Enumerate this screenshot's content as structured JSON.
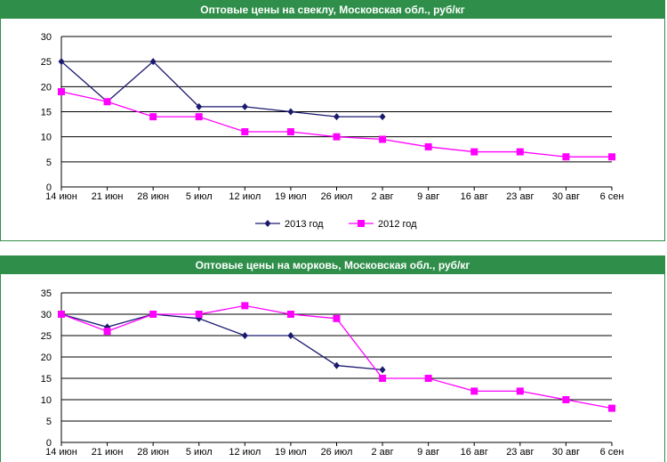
{
  "chart_data": [
    {
      "type": "line",
      "title": "Оптовые цены на свеклу, Московская обл., руб/кг",
      "categories": [
        "14 июн",
        "21 июн",
        "28 июн",
        "5 июл",
        "12 июл",
        "19 июл",
        "26 июл",
        "2 авг",
        "9 авг",
        "16 авг",
        "23 авг",
        "30 авг",
        "6 сен"
      ],
      "ylim": [
        0,
        30
      ],
      "yticks": [
        0,
        5,
        10,
        15,
        20,
        25,
        30
      ],
      "grid": true,
      "legend": "bottom",
      "series": [
        {
          "name": "2013 год",
          "color": "#1a1a6e",
          "marker": "diamond",
          "values": [
            25,
            17,
            25,
            16,
            16,
            15,
            14,
            14,
            null,
            null,
            null,
            null,
            null
          ]
        },
        {
          "name": "2012 год",
          "color": "#ff00ff",
          "marker": "square",
          "values": [
            19,
            17,
            14,
            14,
            11,
            11,
            10,
            9.5,
            8,
            7,
            7,
            6,
            6
          ]
        }
      ]
    },
    {
      "type": "line",
      "title": "Оптовые цены на морковь, Московская обл., руб/кг",
      "categories": [
        "14 июн",
        "21 июн",
        "28 июн",
        "5 июл",
        "12 июл",
        "19 июл",
        "26 июл",
        "2 авг",
        "9 авг",
        "16 авг",
        "23 авг",
        "30 авг",
        "6 сен"
      ],
      "ylim": [
        0,
        35
      ],
      "yticks": [
        0,
        5,
        10,
        15,
        20,
        25,
        30,
        35
      ],
      "grid": true,
      "series": [
        {
          "name": "2013 год",
          "color": "#1a1a6e",
          "marker": "diamond",
          "values": [
            30,
            27,
            30,
            29,
            25,
            25,
            18,
            17,
            null,
            null,
            null,
            null,
            null
          ]
        },
        {
          "name": "2012 год",
          "color": "#ff00ff",
          "marker": "square",
          "values": [
            30,
            26,
            30,
            30,
            32,
            30,
            29,
            15,
            15,
            12,
            12,
            10,
            8
          ]
        }
      ]
    }
  ]
}
